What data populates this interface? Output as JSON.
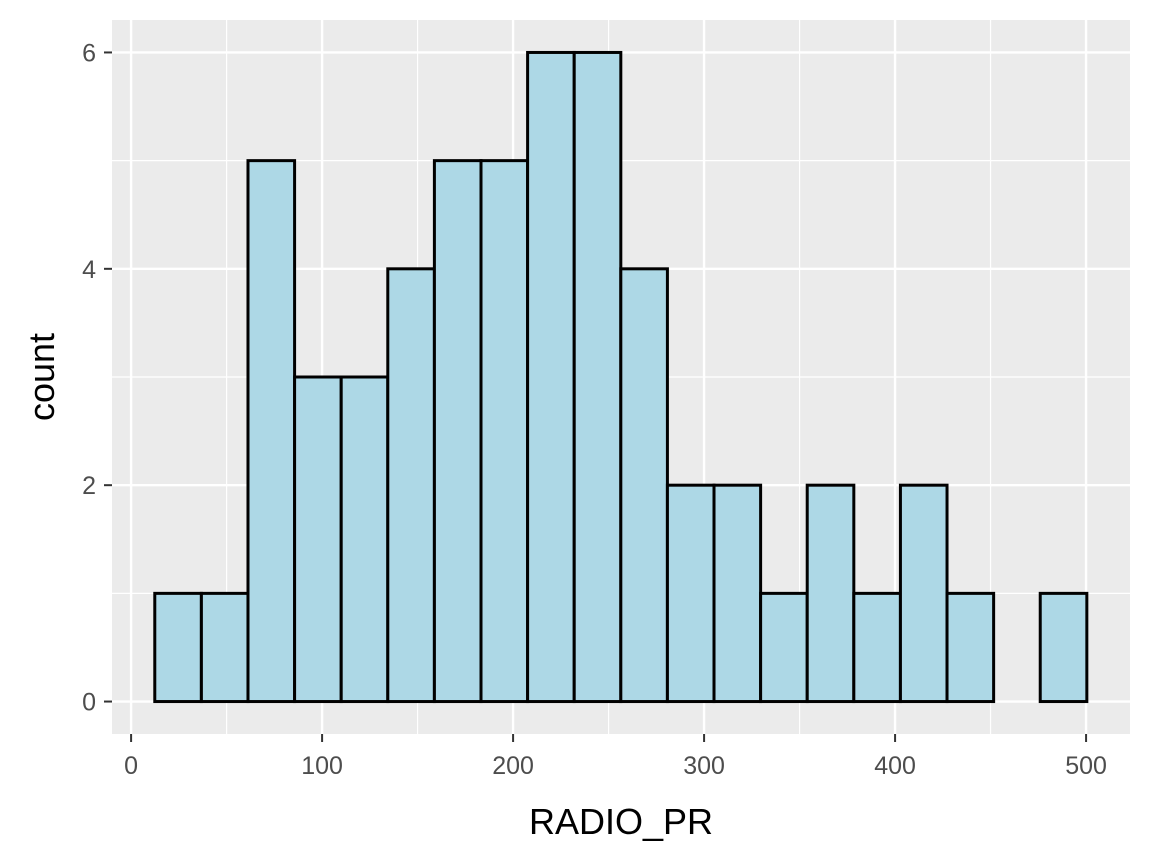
{
  "chart_data": {
    "type": "bar",
    "title": "",
    "xlabel": "RADIO_PR",
    "ylabel": "count",
    "bin_width": 24.4,
    "bins": [
      {
        "x_start": 12.4,
        "x_end": 36.8,
        "count": 1
      },
      {
        "x_start": 36.8,
        "x_end": 61.2,
        "count": 1
      },
      {
        "x_start": 61.2,
        "x_end": 85.6,
        "count": 5
      },
      {
        "x_start": 85.6,
        "x_end": 110.0,
        "count": 3
      },
      {
        "x_start": 110.0,
        "x_end": 134.4,
        "count": 3
      },
      {
        "x_start": 134.4,
        "x_end": 158.8,
        "count": 4
      },
      {
        "x_start": 158.8,
        "x_end": 183.2,
        "count": 5
      },
      {
        "x_start": 183.2,
        "x_end": 207.6,
        "count": 5
      },
      {
        "x_start": 207.6,
        "x_end": 232.0,
        "count": 6
      },
      {
        "x_start": 232.0,
        "x_end": 256.4,
        "count": 6
      },
      {
        "x_start": 256.4,
        "x_end": 280.8,
        "count": 4
      },
      {
        "x_start": 280.8,
        "x_end": 305.2,
        "count": 2
      },
      {
        "x_start": 305.2,
        "x_end": 329.6,
        "count": 2
      },
      {
        "x_start": 329.6,
        "x_end": 354.0,
        "count": 1
      },
      {
        "x_start": 354.0,
        "x_end": 378.4,
        "count": 2
      },
      {
        "x_start": 378.4,
        "x_end": 402.8,
        "count": 1
      },
      {
        "x_start": 402.8,
        "x_end": 427.2,
        "count": 2
      },
      {
        "x_start": 427.2,
        "x_end": 451.6,
        "count": 1
      },
      {
        "x_start": 451.6,
        "x_end": 476.0,
        "count": 0
      },
      {
        "x_start": 476.0,
        "x_end": 500.4,
        "count": 1
      }
    ],
    "xlim": [
      -10,
      523
    ],
    "ylim": [
      -0.3,
      6.3
    ],
    "x_ticks": [
      0,
      100,
      200,
      300,
      400,
      500
    ],
    "x_tick_labels": [
      "0",
      "100",
      "200",
      "300",
      "400",
      "500"
    ],
    "y_ticks": [
      0,
      2,
      4,
      6
    ],
    "y_tick_labels": [
      "0",
      "2",
      "4",
      "6"
    ],
    "grid": true,
    "legend": "none",
    "colors": {
      "bar_fill": "#add8e6",
      "bar_stroke": "#000000",
      "panel_bg": "#ebebeb",
      "grid_major": "#ffffff",
      "grid_minor": "#f5f5f5",
      "tick": "#333333"
    }
  }
}
